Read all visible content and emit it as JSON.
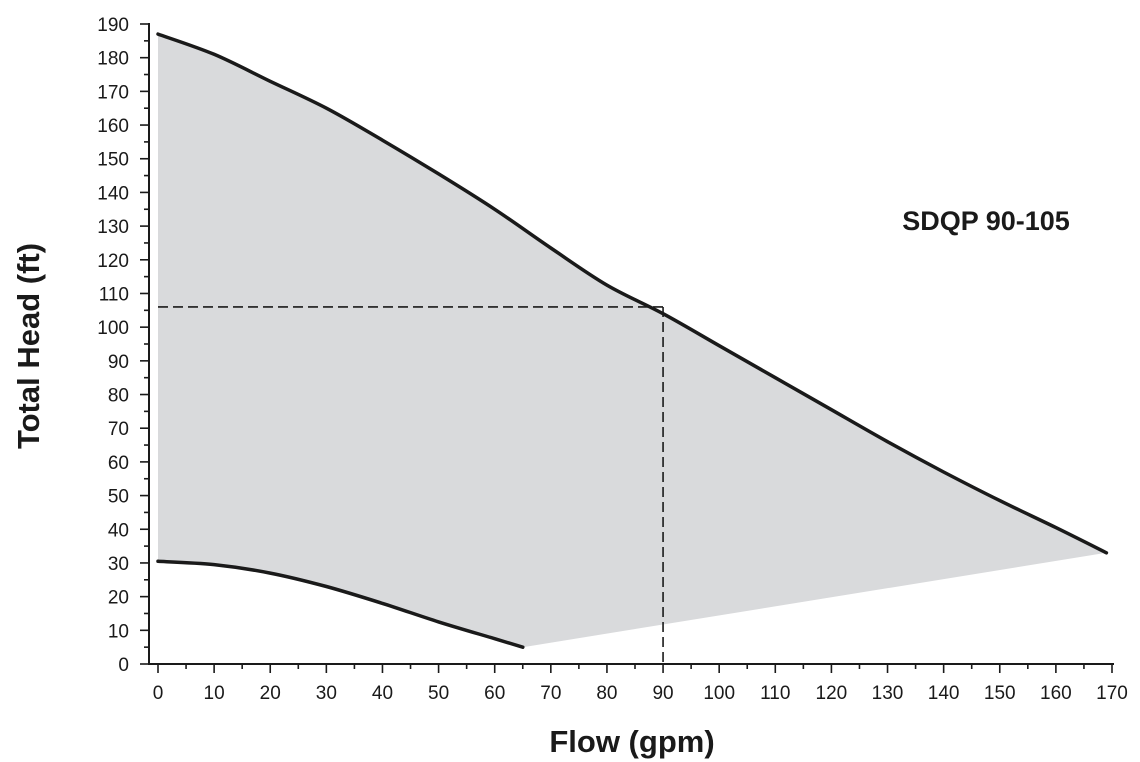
{
  "chart_data": {
    "type": "area",
    "xlabel": "Flow (gpm)",
    "ylabel": "Total Head (ft)",
    "annotation": "SDQP 90-105",
    "xlim": [
      0,
      170
    ],
    "ylim": [
      0,
      190
    ],
    "x_ticks": [
      0,
      10,
      20,
      30,
      40,
      50,
      60,
      70,
      80,
      90,
      100,
      110,
      120,
      130,
      140,
      150,
      160,
      170
    ],
    "y_ticks": [
      0,
      10,
      20,
      30,
      40,
      50,
      60,
      70,
      80,
      90,
      100,
      110,
      120,
      130,
      140,
      150,
      160,
      170,
      180,
      190
    ],
    "grid": false,
    "series": [
      {
        "role": "upper-curve",
        "x": [
          0,
          10,
          20,
          30,
          40,
          50,
          60,
          70,
          80,
          90,
          100,
          110,
          120,
          130,
          140,
          150,
          160,
          169
        ],
        "y": [
          187,
          181,
          173,
          165,
          155.5,
          145.5,
          135,
          123.5,
          112.5,
          104,
          94.5,
          85,
          75.5,
          66,
          57,
          48.5,
          40.5,
          33
        ]
      },
      {
        "role": "lower-curve",
        "x": [
          0,
          10,
          20,
          30,
          40,
          50,
          60,
          65
        ],
        "y": [
          30.5,
          29.5,
          27,
          23,
          18,
          12.5,
          7.5,
          5
        ]
      },
      {
        "role": "min-edge",
        "x": [
          65,
          169
        ],
        "y": [
          5,
          33
        ]
      }
    ],
    "fill_color": "#d9dadc",
    "line_color": "#1a1a1a",
    "operating_point": {
      "x": 90,
      "y": 106
    }
  }
}
